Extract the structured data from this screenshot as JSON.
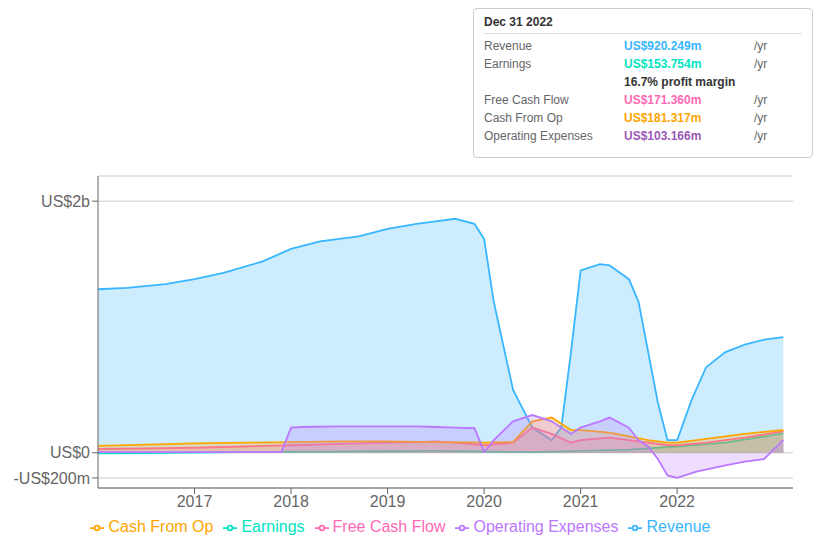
{
  "chart_data": {
    "type": "area",
    "annotations": [
      {
        "text": "Dec 31 2022"
      },
      {
        "label": "Revenue",
        "text": "US$920.249m",
        "unit": "/yr",
        "color": "#38b6ff"
      },
      {
        "label": "Earnings",
        "text": "US$153.754m",
        "unit": "/yr",
        "color": "#00e5c0"
      },
      {
        "text": "16.7% profit margin"
      },
      {
        "label": "Free Cash Flow",
        "text": "US$171.360m",
        "unit": "/yr",
        "color": "#ff69b4"
      },
      {
        "label": "Cash From Op",
        "text": "US$181.317m",
        "unit": "/yr",
        "color": "#ffa500"
      },
      {
        "label": "Operating Expenses",
        "text": "US$103.166m",
        "unit": "/yr",
        "color": "#9b59b6"
      }
    ],
    "xlim": [
      2016.0,
      2023.2
    ],
    "xticks": [
      2017,
      2018,
      2019,
      2020,
      2021,
      2022
    ],
    "ylim": [
      -280,
      2200
    ],
    "yticks": [
      {
        "value": -200,
        "label": "-US$200m"
      },
      {
        "value": 0,
        "label": "US$0"
      },
      {
        "value": 2000,
        "label": "US$2b"
      }
    ],
    "grid": true,
    "legend": "bottom",
    "series": [
      {
        "name": "Revenue",
        "color": "#38b6ff",
        "x": [
          2016.0,
          2016.3,
          2016.7,
          2017.0,
          2017.3,
          2017.7,
          2018.0,
          2018.3,
          2018.7,
          2019.0,
          2019.3,
          2019.5,
          2019.7,
          2019.9,
          2020.0,
          2020.1,
          2020.3,
          2020.5,
          2020.7,
          2020.8,
          2020.9,
          2021.0,
          2021.2,
          2021.3,
          2021.5,
          2021.6,
          2021.7,
          2021.8,
          2021.9,
          2022.0,
          2022.15,
          2022.3,
          2022.5,
          2022.7,
          2022.9,
          2023.1
        ],
        "values": [
          1300,
          1310,
          1340,
          1380,
          1430,
          1520,
          1620,
          1680,
          1720,
          1780,
          1820,
          1840,
          1860,
          1820,
          1700,
          1200,
          500,
          200,
          100,
          200,
          800,
          1450,
          1500,
          1490,
          1380,
          1200,
          800,
          400,
          100,
          100,
          420,
          680,
          800,
          860,
          900,
          920
        ]
      },
      {
        "name": "Earnings",
        "color": "#00e5c0",
        "x": [
          2016.0,
          2016.5,
          2017.0,
          2017.5,
          2018.0,
          2018.5,
          2019.0,
          2019.5,
          2020.0,
          2020.5,
          2021.0,
          2021.5,
          2022.0,
          2022.5,
          2023.1
        ],
        "values": [
          -5,
          -2,
          2,
          5,
          8,
          10,
          12,
          15,
          10,
          5,
          15,
          25,
          50,
          80,
          154
        ]
      },
      {
        "name": "Free Cash Flow",
        "color": "#ff69b4",
        "x": [
          2016.0,
          2016.5,
          2017.0,
          2017.5,
          2018.0,
          2018.5,
          2019.0,
          2019.3,
          2019.5,
          2019.7,
          2020.0,
          2020.3,
          2020.5,
          2020.7,
          2020.9,
          2021.0,
          2021.3,
          2021.5,
          2021.7,
          2021.9,
          2022.0,
          2022.3,
          2022.7,
          2023.1
        ],
        "values": [
          30,
          35,
          40,
          50,
          60,
          70,
          80,
          85,
          90,
          80,
          60,
          80,
          200,
          150,
          80,
          100,
          120,
          100,
          80,
          60,
          60,
          80,
          120,
          171
        ]
      },
      {
        "name": "Cash From Op",
        "color": "#ffa500",
        "x": [
          2016.0,
          2016.5,
          2017.0,
          2017.5,
          2018.0,
          2018.5,
          2019.0,
          2019.5,
          2020.0,
          2020.3,
          2020.5,
          2020.7,
          2020.9,
          2021.0,
          2021.3,
          2021.5,
          2021.7,
          2021.9,
          2022.0,
          2022.3,
          2022.7,
          2023.1
        ],
        "values": [
          55,
          65,
          75,
          80,
          85,
          90,
          90,
          85,
          80,
          85,
          250,
          280,
          180,
          180,
          160,
          130,
          100,
          80,
          80,
          110,
          150,
          181
        ]
      },
      {
        "name": "Operating Expenses",
        "color": "#bb77ff",
        "x": [
          2016.0,
          2016.5,
          2017.0,
          2017.5,
          2017.9,
          2018.0,
          2018.1,
          2018.5,
          2019.0,
          2019.3,
          2019.5,
          2019.7,
          2019.9,
          2020.0,
          2020.05,
          2020.1,
          2020.3,
          2020.5,
          2020.7,
          2020.9,
          2021.0,
          2021.2,
          2021.3,
          2021.5,
          2021.6,
          2021.7,
          2021.8,
          2021.9,
          2022.0,
          2022.2,
          2022.5,
          2022.7,
          2022.9,
          2023.1
        ],
        "values": [
          5,
          5,
          5,
          5,
          5,
          200,
          205,
          210,
          210,
          210,
          205,
          200,
          195,
          10,
          50,
          100,
          250,
          300,
          250,
          150,
          200,
          250,
          280,
          200,
          100,
          50,
          -50,
          -180,
          -200,
          -150,
          -100,
          -70,
          -50,
          103
        ]
      }
    ]
  }
}
